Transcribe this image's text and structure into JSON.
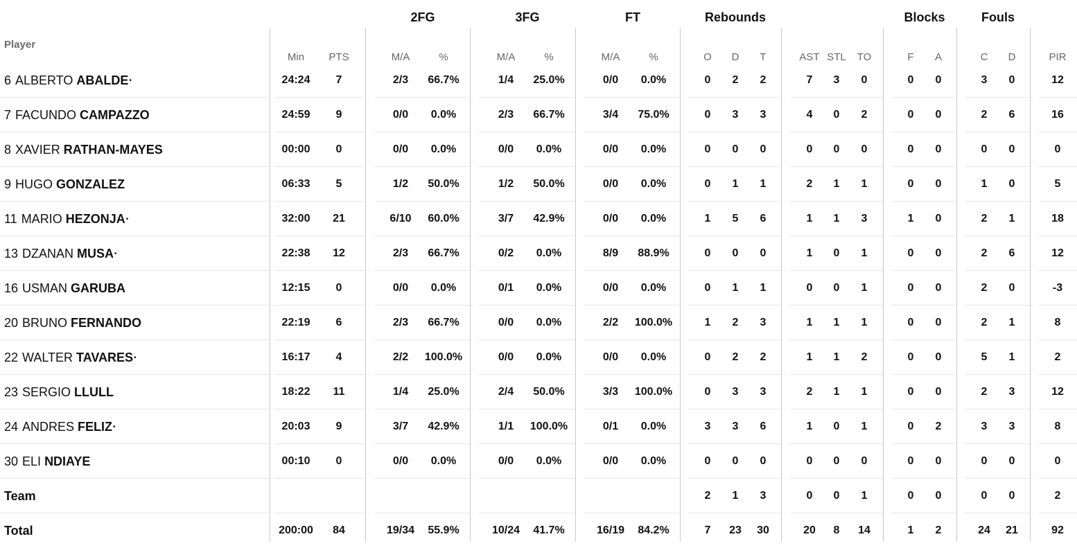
{
  "groups": {
    "g2fg": "2FG",
    "g3fg": "3FG",
    "gft": "FT",
    "greb": "Rebounds",
    "gblk": "Blocks",
    "gfoul": "Fouls"
  },
  "player_header": "Player",
  "subheaders": {
    "min": "Min",
    "pts": "PTS",
    "fg2ma": "M/A",
    "fg2p": "%",
    "fg3ma": "M/A",
    "fg3p": "%",
    "ftma": "M/A",
    "ftp": "%",
    "ro": "O",
    "rd": "D",
    "rt": "T",
    "ast": "AST",
    "stl": "STL",
    "to": "TO",
    "bf": "F",
    "ba": "A",
    "fc": "C",
    "fd": "D",
    "pir": "PIR"
  },
  "star": "•",
  "rows": [
    {
      "num": "6",
      "first": "ALBERTO",
      "last": "ABALDE",
      "starter": true,
      "min": "24:24",
      "pts": "7",
      "fg2ma": "2/3",
      "fg2p": "66.7%",
      "fg3ma": "1/4",
      "fg3p": "25.0%",
      "ftma": "0/0",
      "ftp": "0.0%",
      "ro": "0",
      "rd": "2",
      "rt": "2",
      "ast": "7",
      "stl": "3",
      "to": "0",
      "bf": "0",
      "ba": "0",
      "fc": "3",
      "fd": "0",
      "pir": "12"
    },
    {
      "num": "7",
      "first": "FACUNDO",
      "last": "CAMPAZZO",
      "starter": false,
      "min": "24:59",
      "pts": "9",
      "fg2ma": "0/0",
      "fg2p": "0.0%",
      "fg3ma": "2/3",
      "fg3p": "66.7%",
      "ftma": "3/4",
      "ftp": "75.0%",
      "ro": "0",
      "rd": "3",
      "rt": "3",
      "ast": "4",
      "stl": "0",
      "to": "2",
      "bf": "0",
      "ba": "0",
      "fc": "2",
      "fd": "6",
      "pir": "16"
    },
    {
      "num": "8",
      "first": "XAVIER",
      "last": "RATHAN-MAYES",
      "starter": false,
      "min": "00:00",
      "pts": "0",
      "fg2ma": "0/0",
      "fg2p": "0.0%",
      "fg3ma": "0/0",
      "fg3p": "0.0%",
      "ftma": "0/0",
      "ftp": "0.0%",
      "ro": "0",
      "rd": "0",
      "rt": "0",
      "ast": "0",
      "stl": "0",
      "to": "0",
      "bf": "0",
      "ba": "0",
      "fc": "0",
      "fd": "0",
      "pir": "0"
    },
    {
      "num": "9",
      "first": "HUGO",
      "last": "GONZALEZ",
      "starter": false,
      "min": "06:33",
      "pts": "5",
      "fg2ma": "1/2",
      "fg2p": "50.0%",
      "fg3ma": "1/2",
      "fg3p": "50.0%",
      "ftma": "0/0",
      "ftp": "0.0%",
      "ro": "0",
      "rd": "1",
      "rt": "1",
      "ast": "2",
      "stl": "1",
      "to": "1",
      "bf": "0",
      "ba": "0",
      "fc": "1",
      "fd": "0",
      "pir": "5"
    },
    {
      "num": "11",
      "first": "MARIO",
      "last": "HEZONJA",
      "starter": true,
      "min": "32:00",
      "pts": "21",
      "fg2ma": "6/10",
      "fg2p": "60.0%",
      "fg3ma": "3/7",
      "fg3p": "42.9%",
      "ftma": "0/0",
      "ftp": "0.0%",
      "ro": "1",
      "rd": "5",
      "rt": "6",
      "ast": "1",
      "stl": "1",
      "to": "3",
      "bf": "1",
      "ba": "0",
      "fc": "2",
      "fd": "1",
      "pir": "18"
    },
    {
      "num": "13",
      "first": "DZANAN",
      "last": "MUSA",
      "starter": true,
      "min": "22:38",
      "pts": "12",
      "fg2ma": "2/3",
      "fg2p": "66.7%",
      "fg3ma": "0/2",
      "fg3p": "0.0%",
      "ftma": "8/9",
      "ftp": "88.9%",
      "ro": "0",
      "rd": "0",
      "rt": "0",
      "ast": "1",
      "stl": "0",
      "to": "1",
      "bf": "0",
      "ba": "0",
      "fc": "2",
      "fd": "6",
      "pir": "12"
    },
    {
      "num": "16",
      "first": "USMAN",
      "last": "GARUBA",
      "starter": false,
      "min": "12:15",
      "pts": "0",
      "fg2ma": "0/0",
      "fg2p": "0.0%",
      "fg3ma": "0/1",
      "fg3p": "0.0%",
      "ftma": "0/0",
      "ftp": "0.0%",
      "ro": "0",
      "rd": "1",
      "rt": "1",
      "ast": "0",
      "stl": "0",
      "to": "1",
      "bf": "0",
      "ba": "0",
      "fc": "2",
      "fd": "0",
      "pir": "-3"
    },
    {
      "num": "20",
      "first": "BRUNO",
      "last": "FERNANDO",
      "starter": false,
      "min": "22:19",
      "pts": "6",
      "fg2ma": "2/3",
      "fg2p": "66.7%",
      "fg3ma": "0/0",
      "fg3p": "0.0%",
      "ftma": "2/2",
      "ftp": "100.0%",
      "ro": "1",
      "rd": "2",
      "rt": "3",
      "ast": "1",
      "stl": "1",
      "to": "1",
      "bf": "0",
      "ba": "0",
      "fc": "2",
      "fd": "1",
      "pir": "8"
    },
    {
      "num": "22",
      "first": "WALTER",
      "last": "TAVARES",
      "starter": true,
      "min": "16:17",
      "pts": "4",
      "fg2ma": "2/2",
      "fg2p": "100.0%",
      "fg3ma": "0/0",
      "fg3p": "0.0%",
      "ftma": "0/0",
      "ftp": "0.0%",
      "ro": "0",
      "rd": "2",
      "rt": "2",
      "ast": "1",
      "stl": "1",
      "to": "2",
      "bf": "0",
      "ba": "0",
      "fc": "5",
      "fd": "1",
      "pir": "2"
    },
    {
      "num": "23",
      "first": "SERGIO",
      "last": "LLULL",
      "starter": false,
      "min": "18:22",
      "pts": "11",
      "fg2ma": "1/4",
      "fg2p": "25.0%",
      "fg3ma": "2/4",
      "fg3p": "50.0%",
      "ftma": "3/3",
      "ftp": "100.0%",
      "ro": "0",
      "rd": "3",
      "rt": "3",
      "ast": "2",
      "stl": "1",
      "to": "1",
      "bf": "0",
      "ba": "0",
      "fc": "2",
      "fd": "3",
      "pir": "12"
    },
    {
      "num": "24",
      "first": "ANDRES",
      "last": "FELIZ",
      "starter": true,
      "min": "20:03",
      "pts": "9",
      "fg2ma": "3/7",
      "fg2p": "42.9%",
      "fg3ma": "1/1",
      "fg3p": "100.0%",
      "ftma": "0/1",
      "ftp": "0.0%",
      "ro": "3",
      "rd": "3",
      "rt": "6",
      "ast": "1",
      "stl": "0",
      "to": "1",
      "bf": "0",
      "ba": "2",
      "fc": "3",
      "fd": "3",
      "pir": "8"
    },
    {
      "num": "30",
      "first": "ELI",
      "last": "NDIAYE",
      "starter": false,
      "min": "00:10",
      "pts": "0",
      "fg2ma": "0/0",
      "fg2p": "0.0%",
      "fg3ma": "0/0",
      "fg3p": "0.0%",
      "ftma": "0/0",
      "ftp": "0.0%",
      "ro": "0",
      "rd": "0",
      "rt": "0",
      "ast": "0",
      "stl": "0",
      "to": "0",
      "bf": "0",
      "ba": "0",
      "fc": "0",
      "fd": "0",
      "pir": "0"
    }
  ],
  "team": {
    "label": "Team",
    "ro": "2",
    "rd": "1",
    "rt": "3",
    "ast": "0",
    "stl": "0",
    "to": "1",
    "bf": "0",
    "ba": "0",
    "fc": "0",
    "fd": "0",
    "pir": "2"
  },
  "total": {
    "label": "Total",
    "min": "200:00",
    "pts": "84",
    "fg2ma": "19/34",
    "fg2p": "55.9%",
    "fg3ma": "10/24",
    "fg3p": "41.7%",
    "ftma": "16/19",
    "ftp": "84.2%",
    "ro": "7",
    "rd": "23",
    "rt": "30",
    "ast": "20",
    "stl": "8",
    "to": "14",
    "bf": "1",
    "ba": "2",
    "fc": "24",
    "fd": "21",
    "pir": "92"
  }
}
